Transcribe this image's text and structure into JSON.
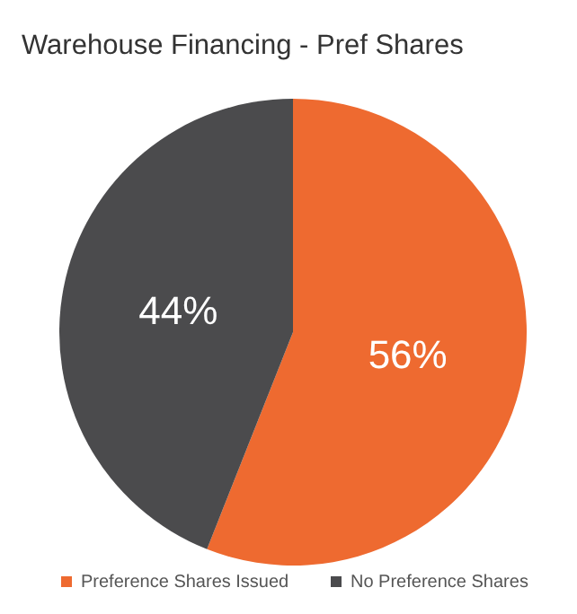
{
  "chart_data": {
    "type": "pie",
    "title": "Warehouse Financing - Pref Shares",
    "categories": [
      "Preference Shares Issued",
      "No Preference Shares"
    ],
    "values": [
      56,
      44
    ],
    "colors": [
      "#ee6a30",
      "#4b4b4d"
    ],
    "value_labels": [
      "56%",
      "44%"
    ],
    "legend": "bottom"
  }
}
